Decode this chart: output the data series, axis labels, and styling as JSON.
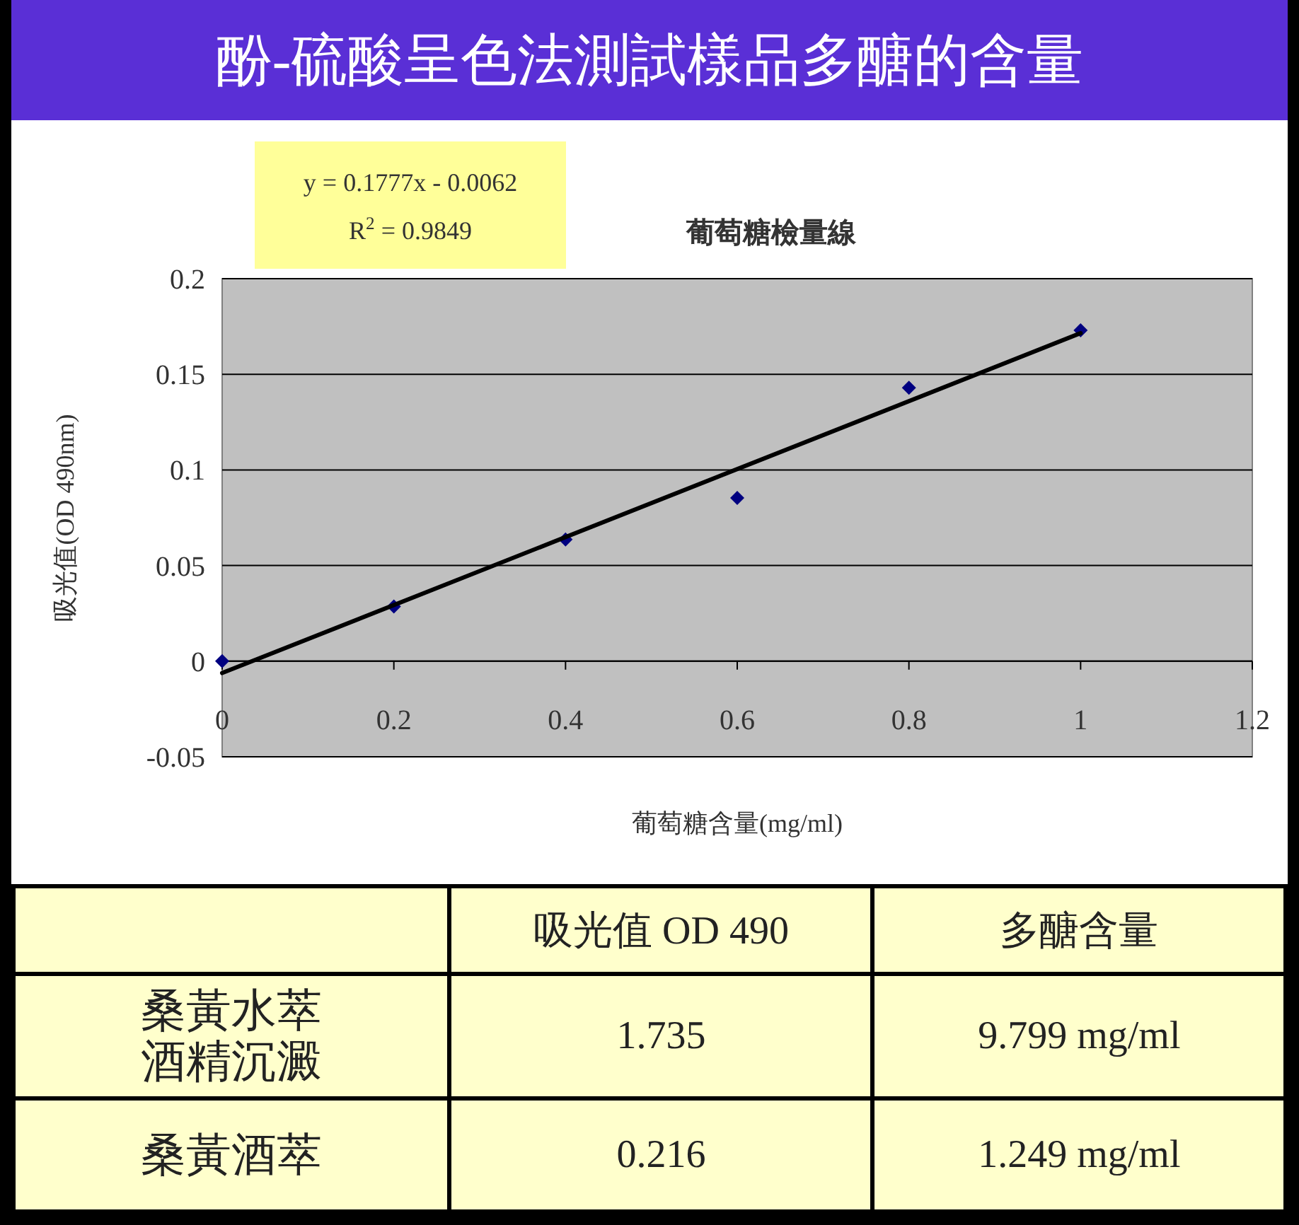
{
  "chart_data": {
    "type": "scatter",
    "title": "酚-硫酸呈色法測試樣品多醣的含量",
    "subtitle": "葡萄糖檢量線",
    "xlabel": "葡萄糖含量(mg/ml)",
    "ylabel": "吸光值(OD 490nm)",
    "x": [
      0,
      0.2,
      0.4,
      0.6,
      0.8,
      1.0
    ],
    "series": [
      {
        "color": "#000080",
        "marker": "diamond",
        "values": [
          0,
          0.0286,
          0.0636,
          0.0854,
          0.143,
          0.173
        ]
      },
      {
        "type": "line",
        "color": "#000000",
        "x": [
          0,
          1
        ],
        "values": [
          -0.0062,
          0.1715
        ]
      }
    ],
    "grid": "y",
    "xlim": [
      0,
      1.2
    ],
    "xticks": [
      0,
      0.2,
      0.4,
      0.6,
      0.8,
      1,
      1.2
    ],
    "ylim": [
      -0.05,
      0.2
    ],
    "yticks": [
      -0.05,
      0,
      0.05,
      0.1,
      0.15,
      0.2
    ],
    "annotations": [
      "y = 0.1777x - 0.0062",
      "R$^{2}$ = 0.9849",
      "吸光值 OD 490",
      "多醣含量",
      "桑黃水萃酒精沉澱",
      "1.735",
      "9.799 mg/ml",
      "桑黃酒萃",
      "0.216",
      "1.249 mg/ml"
    ]
  }
}
